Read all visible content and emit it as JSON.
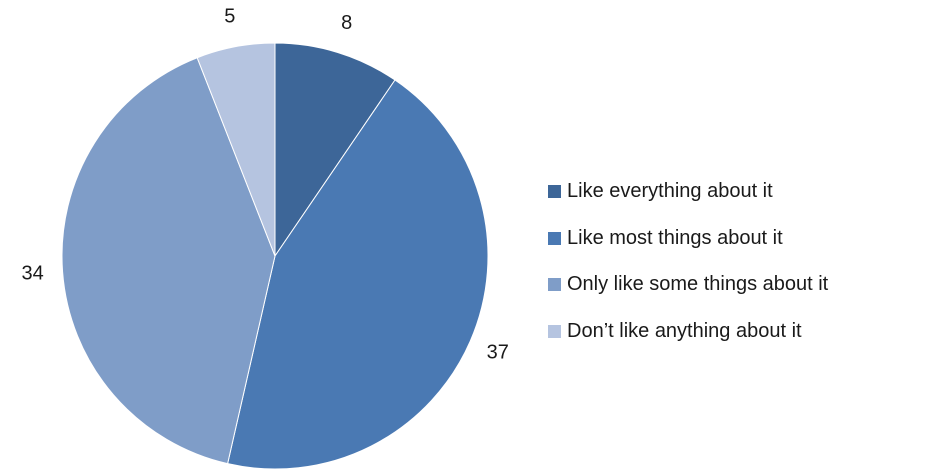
{
  "chart_data": {
    "type": "pie",
    "title": "",
    "categories": [
      "Like everything about it",
      "Like most things about it",
      "Only like some things about it",
      "Don’t like anything about it"
    ],
    "values": [
      8,
      37,
      34,
      5
    ],
    "colors": [
      "#3d6698",
      "#4a79b3",
      "#7f9dc8",
      "#b5c4e0"
    ],
    "start_angle": "12 o'clock",
    "direction": "clockwise",
    "legend": "right",
    "data_labels": true
  }
}
